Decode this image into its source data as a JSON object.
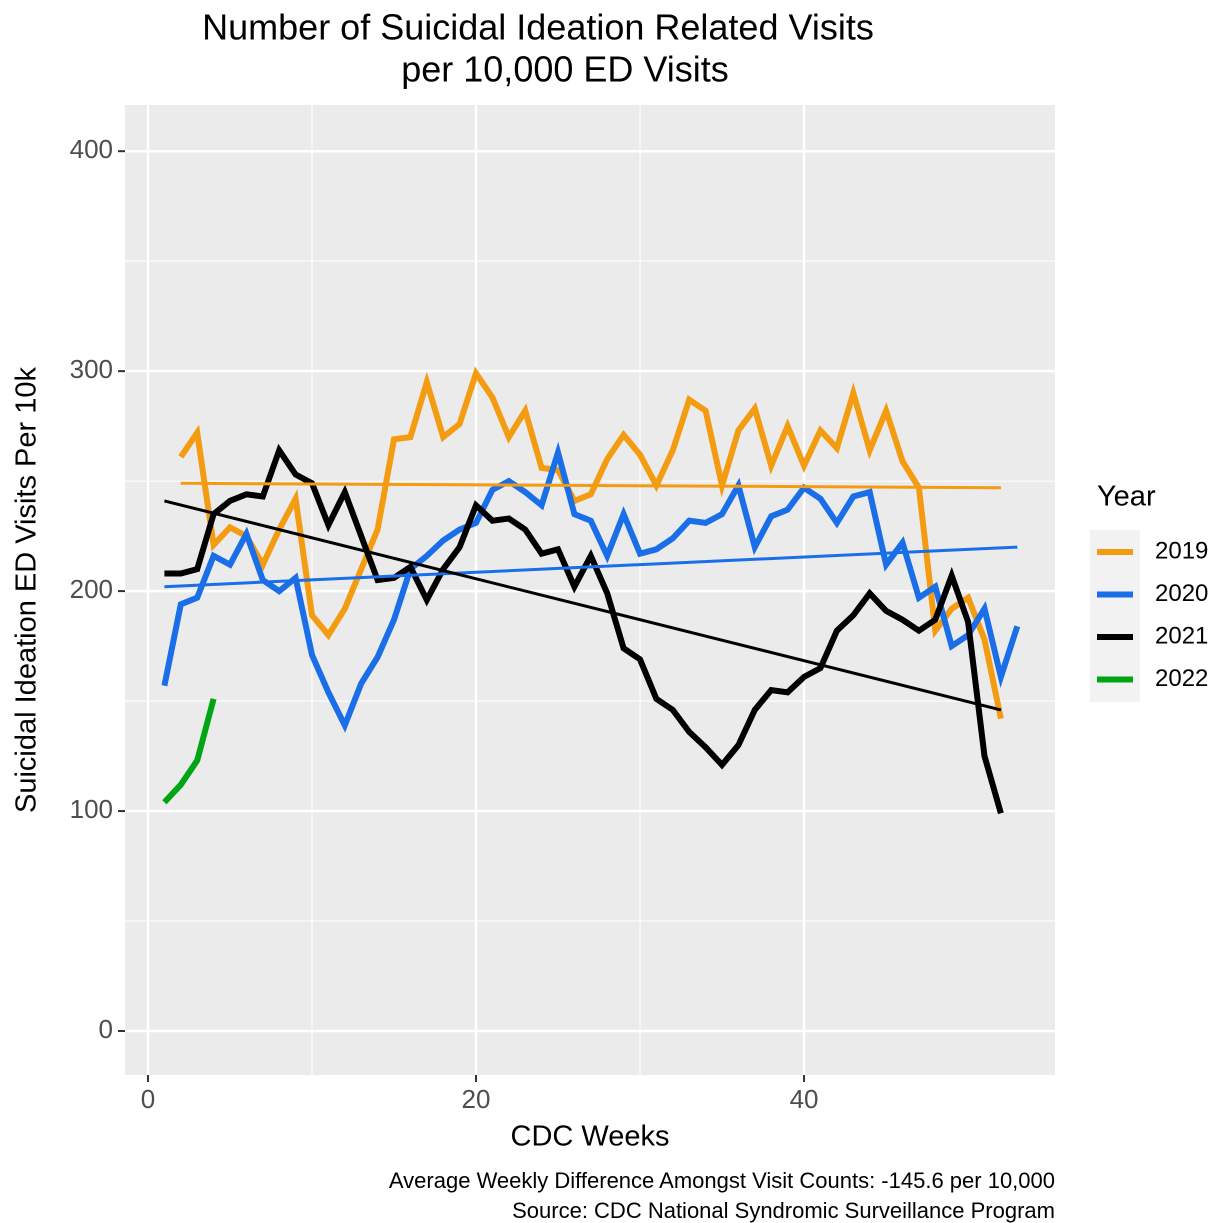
{
  "chart_data": {
    "type": "line",
    "title": [
      "Number of Suicidal Ideation Related Visits",
      "per 10,000 ED Visits"
    ],
    "x_label": "CDC Weeks",
    "y_label": "Suicidal Ideation ED Visits Per 10k",
    "caption": [
      "Average Weekly Difference Amongst Visit Counts: -145.6 per 10,000",
      "Source: CDC National Syndromic Surveillance Program"
    ],
    "legend_title": "Year",
    "legend_position": "right",
    "grid": true,
    "xlim": [
      -1.4,
      55.3
    ],
    "xticks": [
      0,
      20,
      40
    ],
    "ylim": [
      -20,
      421
    ],
    "yticks": [
      0,
      100,
      200,
      300,
      400
    ],
    "series": [
      {
        "name": "2019",
        "color": "#f39c12",
        "x": [
          2,
          3,
          4,
          5,
          6,
          7,
          8,
          9,
          10,
          11,
          12,
          13,
          14,
          15,
          16,
          17,
          18,
          19,
          20,
          21,
          22,
          23,
          24,
          25,
          26,
          27,
          28,
          29,
          30,
          31,
          32,
          33,
          34,
          35,
          36,
          37,
          38,
          39,
          40,
          41,
          42,
          43,
          44,
          45,
          46,
          47,
          48,
          49,
          50,
          51,
          52
        ],
        "values": [
          261,
          272,
          221,
          229,
          225,
          212,
          228,
          242,
          189,
          180,
          192,
          210,
          228,
          269,
          270,
          295,
          270,
          276,
          299,
          288,
          270,
          282,
          256,
          255,
          241,
          244,
          260,
          271,
          262,
          248,
          264,
          287,
          282,
          248,
          273,
          283,
          257,
          275,
          257,
          273,
          265,
          290,
          264,
          282,
          259,
          247,
          182,
          192,
          197,
          178,
          142
        ],
        "trend": {
          "x": [
            2,
            52
          ],
          "values": [
            249,
            247
          ]
        }
      },
      {
        "name": "2020",
        "color": "#1a6ee8",
        "x": [
          1,
          2,
          3,
          4,
          5,
          6,
          7,
          8,
          9,
          10,
          11,
          12,
          13,
          14,
          15,
          16,
          17,
          18,
          19,
          20,
          21,
          22,
          23,
          24,
          25,
          26,
          27,
          28,
          29,
          30,
          31,
          32,
          33,
          34,
          35,
          36,
          37,
          38,
          39,
          40,
          41,
          42,
          43,
          44,
          45,
          46,
          47,
          48,
          49,
          50,
          51,
          52,
          53
        ],
        "values": [
          157,
          194,
          197,
          216,
          212,
          226,
          205,
          200,
          206,
          171,
          154,
          139,
          158,
          170,
          187,
          210,
          216,
          223,
          228,
          231,
          246,
          250,
          245,
          239,
          263,
          235,
          232,
          216,
          235,
          217,
          219,
          224,
          232,
          231,
          235,
          248,
          220,
          234,
          237,
          247,
          242,
          231,
          243,
          245,
          212,
          222,
          197,
          202,
          175,
          180,
          192,
          161,
          184
        ],
        "trend": {
          "x": [
            1,
            53
          ],
          "values": [
            202,
            220
          ]
        }
      },
      {
        "name": "2021",
        "color": "#000000",
        "x": [
          1,
          2,
          3,
          4,
          5,
          6,
          7,
          8,
          9,
          10,
          11,
          12,
          13,
          14,
          15,
          16,
          17,
          18,
          19,
          20,
          21,
          22,
          23,
          24,
          25,
          26,
          27,
          28,
          29,
          30,
          31,
          32,
          33,
          34,
          35,
          36,
          37,
          38,
          39,
          40,
          41,
          42,
          43,
          44,
          45,
          46,
          47,
          48,
          49,
          50,
          51,
          52
        ],
        "values": [
          208,
          208,
          210,
          235,
          241,
          244,
          243,
          264,
          253,
          249,
          230,
          245,
          225,
          205,
          206,
          211,
          196,
          210,
          220,
          239,
          232,
          233,
          228,
          217,
          219,
          202,
          216,
          199,
          174,
          169,
          151,
          146,
          136,
          129,
          121,
          130,
          146,
          155,
          154,
          161,
          165,
          182,
          189,
          199,
          191,
          187,
          182,
          187,
          207,
          186,
          125,
          99
        ],
        "trend": {
          "x": [
            1,
            52
          ],
          "values": [
            241,
            146
          ]
        }
      },
      {
        "name": "2022",
        "color": "#00a514",
        "x": [
          1,
          2,
          3,
          4
        ],
        "values": [
          104,
          112,
          123,
          151
        ]
      }
    ]
  }
}
